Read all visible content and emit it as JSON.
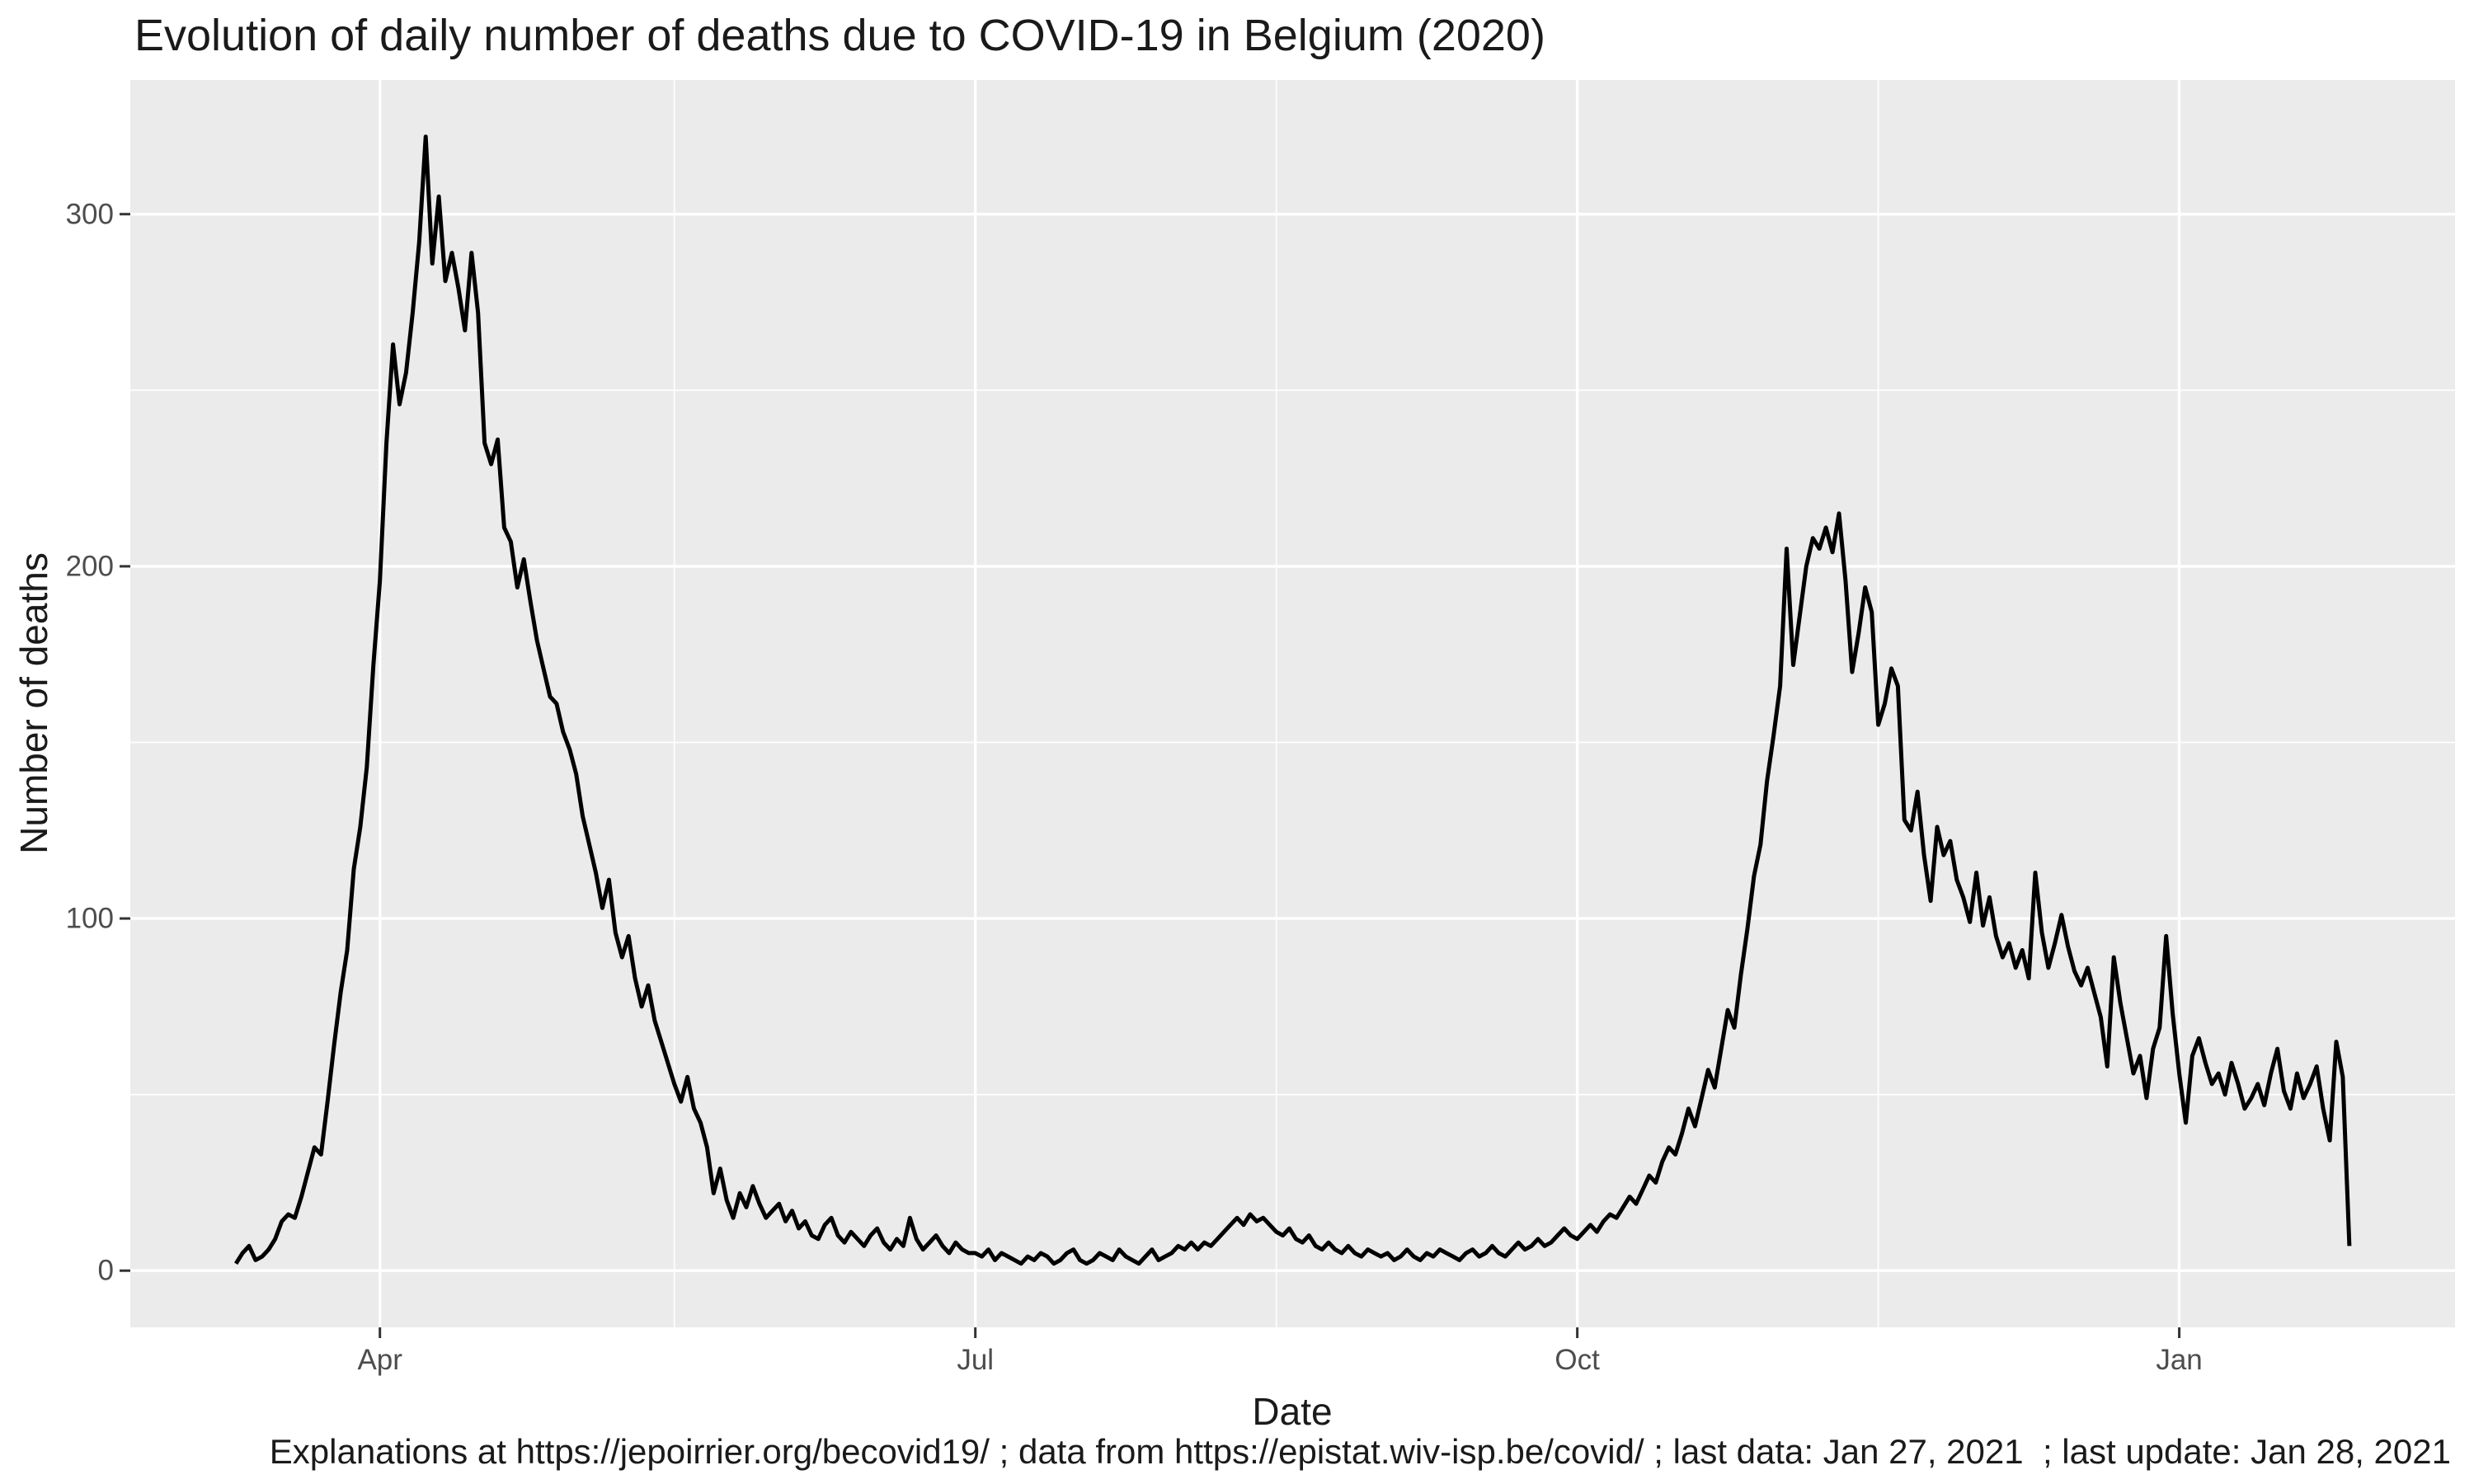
{
  "title": "Evolution of daily number of deaths due to COVID-19 in Belgium (2020)",
  "caption": "Explanations at https://jepoirrier.org/becovid19/ ; data from https://epistat.wiv-isp.be/covid/ ; last data: Jan 27, 2021  ; last update: Jan 28, 2021",
  "x_axis": {
    "label": "Date"
  },
  "y_axis": {
    "label": "Number of deaths"
  },
  "colors": {
    "panel_background": "#EBEBEB",
    "gridline": "#FFFFFF",
    "series_line": "#000000",
    "axis_text": "#4D4D4D",
    "tick_mark": "#333333",
    "title_text": "#1A1A1A"
  },
  "chart_data": {
    "type": "line",
    "title": "Evolution of daily number of deaths due to COVID-19 in Belgium (2020)",
    "xlabel": "Date",
    "ylabel": "Number of deaths",
    "grid": true,
    "legend": false,
    "frequency": "daily",
    "start_date": "2020-03-10",
    "end_date": "2021-01-27",
    "ylim": [
      0,
      322
    ],
    "axis_expansion": 0.05,
    "y_major_ticks": [
      0,
      100,
      200,
      300
    ],
    "y_minor_gridlines": [
      50,
      150,
      250
    ],
    "x_major_ticks": [
      {
        "label": "Apr",
        "day_index": 22
      },
      {
        "label": "Jul",
        "day_index": 113
      },
      {
        "label": "Oct",
        "day_index": 205
      },
      {
        "label": "Jan",
        "day_index": 297
      }
    ],
    "x_minor_gridline_day_indices": [
      67,
      159,
      251
    ],
    "values": [
      2,
      5,
      7,
      3,
      4,
      6,
      9,
      14,
      16,
      15,
      21,
      28,
      35,
      33,
      48,
      64,
      79,
      91,
      114,
      126,
      143,
      172,
      196,
      235,
      263,
      246,
      255,
      272,
      292,
      322,
      286,
      305,
      281,
      289,
      279,
      267,
      289,
      272,
      235,
      229,
      236,
      211,
      207,
      194,
      202,
      190,
      179,
      171,
      163,
      161,
      153,
      148,
      141,
      129,
      121,
      113,
      103,
      111,
      96,
      89,
      95,
      83,
      75,
      81,
      71,
      65,
      59,
      53,
      48,
      55,
      46,
      42,
      35,
      22,
      29,
      20,
      15,
      22,
      18,
      24,
      19,
      15,
      17,
      19,
      14,
      17,
      12,
      14,
      10,
      9,
      13,
      15,
      10,
      8,
      11,
      9,
      7,
      10,
      12,
      8,
      6,
      9,
      7,
      15,
      9,
      6,
      8,
      10,
      7,
      5,
      8,
      6,
      5,
      5,
      4,
      6,
      3,
      5,
      4,
      3,
      2,
      4,
      3,
      5,
      4,
      2,
      3,
      5,
      6,
      3,
      2,
      3,
      5,
      4,
      3,
      6,
      4,
      3,
      2,
      4,
      6,
      3,
      4,
      5,
      7,
      6,
      8,
      6,
      8,
      7,
      9,
      11,
      13,
      15,
      13,
      16,
      14,
      15,
      13,
      11,
      10,
      12,
      9,
      8,
      10,
      7,
      6,
      8,
      6,
      5,
      7,
      5,
      4,
      6,
      5,
      4,
      5,
      3,
      4,
      6,
      4,
      3,
      5,
      4,
      6,
      5,
      4,
      3,
      5,
      6,
      4,
      5,
      7,
      5,
      4,
      6,
      8,
      6,
      7,
      9,
      7,
      8,
      10,
      12,
      10,
      9,
      11,
      13,
      11,
      14,
      16,
      15,
      18,
      21,
      19,
      23,
      27,
      25,
      31,
      35,
      33,
      39,
      46,
      41,
      49,
      57,
      52,
      63,
      74,
      69,
      84,
      97,
      112,
      121,
      139,
      152,
      166,
      205,
      172,
      186,
      200,
      208,
      205,
      211,
      204,
      215,
      196,
      170,
      181,
      194,
      187,
      155,
      161,
      171,
      166,
      128,
      125,
      136,
      118,
      105,
      126,
      118,
      122,
      111,
      106,
      99,
      113,
      98,
      106,
      95,
      89,
      93,
      86,
      91,
      83,
      113,
      96,
      86,
      93,
      101,
      92,
      85,
      81,
      86,
      79,
      72,
      58,
      89,
      76,
      66,
      56,
      61,
      49,
      63,
      69,
      95,
      73,
      56,
      42,
      61,
      66,
      59,
      53,
      56,
      50,
      59,
      53,
      46,
      49,
      53,
      47,
      56,
      63,
      51,
      46,
      56,
      49,
      53,
      58,
      46,
      37,
      65,
      55,
      7
    ]
  }
}
